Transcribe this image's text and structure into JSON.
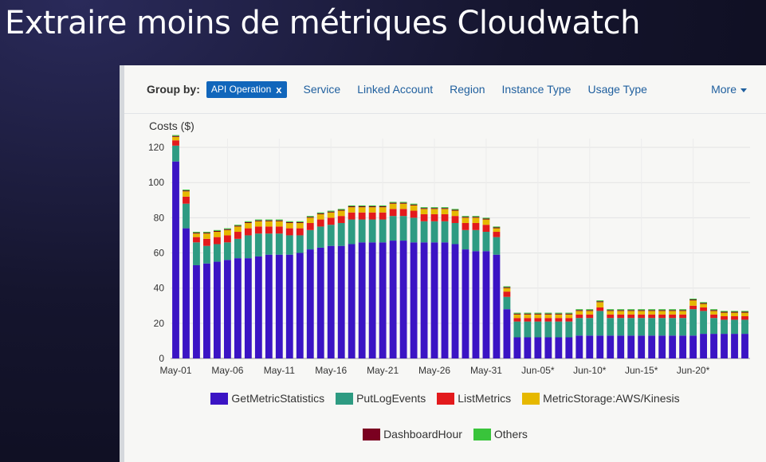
{
  "slide": {
    "title": "Extraire moins de métriques Cloudwatch"
  },
  "toolbar": {
    "group_by_label": "Group by:",
    "chip_label": "API Operation",
    "chip_remove": "x",
    "dimensions": [
      "Service",
      "Linked Account",
      "Region",
      "Instance Type",
      "Usage Type"
    ],
    "more_label": "More"
  },
  "chart_data": {
    "type": "bar",
    "stacked": true,
    "ylabel": "Costs ($)",
    "ylim": [
      0,
      125
    ],
    "yticks": [
      0,
      20,
      40,
      60,
      80,
      100,
      120
    ],
    "xtick_labels": [
      "May-01",
      "May-06",
      "May-11",
      "May-16",
      "May-21",
      "May-26",
      "May-31",
      "Jun-05*",
      "Jun-10*",
      "Jun-15*",
      "Jun-20*"
    ],
    "xtick_index": [
      0,
      5,
      10,
      15,
      20,
      25,
      30,
      35,
      40,
      45,
      50
    ],
    "grid": true,
    "legend_position": "bottom",
    "series": [
      {
        "name": "GetMetricStatistics",
        "color": "#3b14c4",
        "values": [
          112,
          74,
          53,
          54,
          55,
          56,
          57,
          57,
          58,
          59,
          59,
          59,
          60,
          62,
          63,
          64,
          64,
          65,
          66,
          66,
          66,
          67,
          67,
          66,
          66,
          66,
          66,
          65,
          62,
          61,
          61,
          59,
          28,
          12,
          12,
          12,
          12,
          12,
          12,
          13,
          13,
          13,
          13,
          13,
          13,
          13,
          13,
          13,
          13,
          13,
          13,
          14,
          14,
          14,
          14,
          14
        ]
      },
      {
        "name": "PutLogEvents",
        "color": "#2e9b82",
        "values": [
          9,
          14,
          13,
          10,
          10,
          10,
          11,
          13,
          13,
          12,
          12,
          11,
          10,
          11,
          12,
          12,
          13,
          14,
          13,
          13,
          13,
          14,
          14,
          14,
          12,
          12,
          12,
          12,
          11,
          12,
          11,
          10,
          7,
          9,
          9,
          9,
          9,
          9,
          9,
          10,
          10,
          14,
          10,
          10,
          10,
          10,
          10,
          10,
          10,
          10,
          15,
          13,
          9,
          8,
          8,
          8
        ]
      },
      {
        "name": "ListMetrics",
        "color": "#e31a1c",
        "values": [
          3,
          4,
          3,
          4,
          4,
          4,
          4,
          4,
          4,
          4,
          4,
          4,
          4,
          4,
          4,
          4,
          4,
          4,
          4,
          4,
          4,
          4,
          4,
          4,
          4,
          4,
          4,
          4,
          4,
          4,
          4,
          3,
          3,
          2,
          2,
          2,
          2,
          2,
          2,
          2,
          2,
          2,
          2,
          2,
          2,
          2,
          2,
          2,
          2,
          2,
          2,
          2,
          2,
          2,
          2,
          2
        ]
      },
      {
        "name": "MetricStorage:AWS/Kinesis",
        "color": "#e6b800",
        "values": [
          2,
          3,
          2,
          3,
          3,
          3,
          3,
          3,
          3,
          3,
          3,
          3,
          3,
          3,
          3,
          3,
          3,
          3,
          3,
          3,
          3,
          3,
          3,
          3,
          3,
          3,
          3,
          3,
          3,
          3,
          3,
          2,
          2,
          2,
          2,
          2,
          2,
          2,
          2,
          2,
          2,
          3,
          2,
          2,
          2,
          2,
          2,
          2,
          2,
          2,
          3,
          2,
          2,
          2,
          2,
          2
        ]
      },
      {
        "name": "DashboardHour",
        "color": "#7a0020",
        "values": [
          0.5,
          0.5,
          0.5,
          0.5,
          0.5,
          0.5,
          0.5,
          0.5,
          0.5,
          0.5,
          0.5,
          0.5,
          0.5,
          0.5,
          0.5,
          0.5,
          0.5,
          0.5,
          0.5,
          0.5,
          0.5,
          0.5,
          0.5,
          0.5,
          0.5,
          0.5,
          0.5,
          0.5,
          0.5,
          0.5,
          0.5,
          0.5,
          0.5,
          0.5,
          0.5,
          0.5,
          0.5,
          0.5,
          0.5,
          0.5,
          0.5,
          0.5,
          0.5,
          0.5,
          0.5,
          0.5,
          0.5,
          0.5,
          0.5,
          0.5,
          0.5,
          0.5,
          0.5,
          0.5,
          0.5,
          0.5
        ]
      },
      {
        "name": "Others",
        "color": "#39c43b",
        "values": [
          0.5,
          0.5,
          0.5,
          0.5,
          0.5,
          0.5,
          0.5,
          0.5,
          0.5,
          0.5,
          0.5,
          0.5,
          0.5,
          0.5,
          0.5,
          0.5,
          0.5,
          0.5,
          0.5,
          0.5,
          0.5,
          0.5,
          0.5,
          0.5,
          0.5,
          0.5,
          0.5,
          0.5,
          0.5,
          0.5,
          0.5,
          0.5,
          0.5,
          0.5,
          0.5,
          0.5,
          0.5,
          0.5,
          0.5,
          0.5,
          0.5,
          0.5,
          0.5,
          0.5,
          0.5,
          0.5,
          0.5,
          0.5,
          0.5,
          0.5,
          0.5,
          0.5,
          0.5,
          0.5,
          0.5,
          0.5
        ]
      }
    ]
  }
}
